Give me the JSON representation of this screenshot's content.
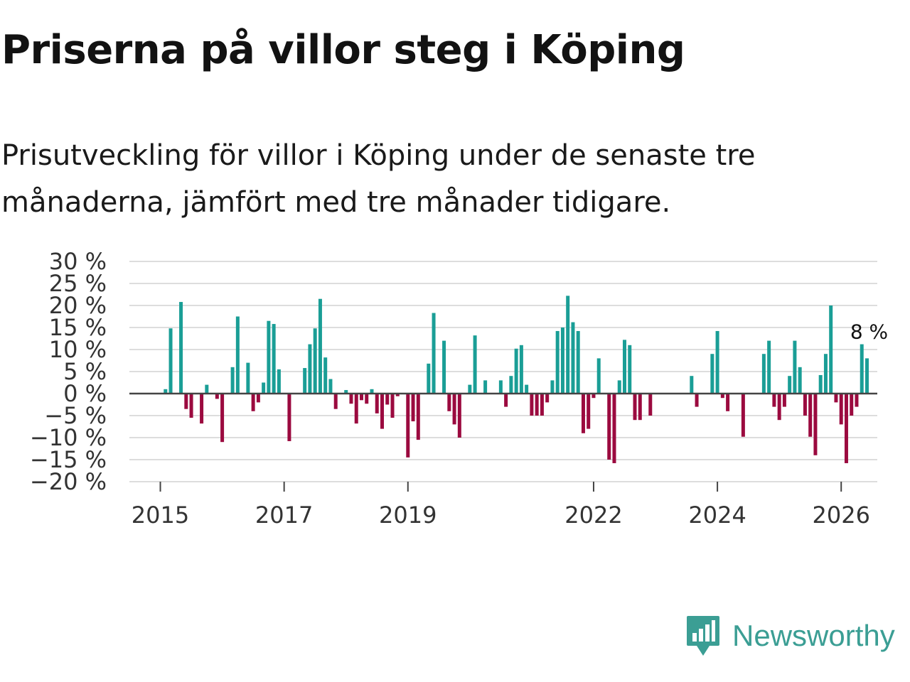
{
  "title": "Priserna på villor steg i Köping",
  "subtitle": "Prisutveckling för villor i Köping under de senaste tre månaderna, jämfört med tre månader tidigare.",
  "brand": {
    "name": "Newsworthy",
    "icon": "newsworthy-logo-icon"
  },
  "colors": {
    "positive": "#1a9e96",
    "negative": "#9b0a3f",
    "grid": "#dddddd",
    "baseline": "#444444",
    "brand": "#3b9e94"
  },
  "chart_data": {
    "type": "bar",
    "title": "Priserna på villor steg i Köping",
    "xlabel": "",
    "ylabel": "",
    "ylim": [
      -20,
      30
    ],
    "yticks": [
      30,
      25,
      20,
      15,
      10,
      5,
      0,
      -5,
      -10,
      -15,
      -20
    ],
    "ytick_labels": [
      "30 %",
      "25 %",
      "20 %",
      "15 %",
      "10 %",
      "5 %",
      "0 %",
      "−5 %",
      "−10 %",
      "−15 %",
      "−20 %"
    ],
    "xlim": [
      "2014-07",
      "2026-08"
    ],
    "xticks": [
      "2015-01",
      "2017-01",
      "2019-01",
      "2022-01",
      "2024-01",
      "2026-01"
    ],
    "xtick_labels": [
      "2015",
      "2017",
      "2019",
      "2022",
      "2024",
      "2026"
    ],
    "end_label": "8 %",
    "series": [
      {
        "name": "Prisutveckling",
        "points": [
          [
            "2015-02",
            1
          ],
          [
            "2015-03",
            14.8
          ],
          [
            "2015-05",
            20.8
          ],
          [
            "2015-06",
            -3.5
          ],
          [
            "2015-07",
            -5.5
          ],
          [
            "2015-09",
            -6.8
          ],
          [
            "2015-10",
            2
          ],
          [
            "2015-12",
            -1.2
          ],
          [
            "2016-01",
            -11
          ],
          [
            "2016-03",
            6
          ],
          [
            "2016-04",
            17.5
          ],
          [
            "2016-06",
            7
          ],
          [
            "2016-07",
            -4
          ],
          [
            "2016-08",
            -2
          ],
          [
            "2016-09",
            2.5
          ],
          [
            "2016-10",
            16.5
          ],
          [
            "2016-11",
            15.8
          ],
          [
            "2016-12",
            5.5
          ],
          [
            "2017-02",
            -10.8
          ],
          [
            "2017-05",
            5.8
          ],
          [
            "2017-06",
            11.2
          ],
          [
            "2017-07",
            14.8
          ],
          [
            "2017-08",
            21.5
          ],
          [
            "2017-09",
            8.2
          ],
          [
            "2017-10",
            3.3
          ],
          [
            "2017-11",
            -3.5
          ],
          [
            "2018-01",
            0.8
          ],
          [
            "2018-02",
            -2.3
          ],
          [
            "2018-03",
            -6.8
          ],
          [
            "2018-04",
            -1.5
          ],
          [
            "2018-05",
            -2.3
          ],
          [
            "2018-06",
            1
          ],
          [
            "2018-07",
            -4.5
          ],
          [
            "2018-08",
            -8
          ],
          [
            "2018-09",
            -2.5
          ],
          [
            "2018-10",
            -5.5
          ],
          [
            "2018-11",
            -0.6
          ],
          [
            "2019-01",
            -14.5
          ],
          [
            "2019-02",
            -6.3
          ],
          [
            "2019-03",
            -10.5
          ],
          [
            "2019-05",
            6.8
          ],
          [
            "2019-06",
            18.3
          ],
          [
            "2019-08",
            12
          ],
          [
            "2019-09",
            -4
          ],
          [
            "2019-10",
            -7
          ],
          [
            "2019-11",
            -10
          ],
          [
            "2020-01",
            2
          ],
          [
            "2020-02",
            13.2
          ],
          [
            "2020-04",
            3
          ],
          [
            "2020-07",
            3
          ],
          [
            "2020-08",
            -3
          ],
          [
            "2020-09",
            4
          ],
          [
            "2020-10",
            10.2
          ],
          [
            "2020-11",
            11
          ],
          [
            "2020-12",
            2
          ],
          [
            "2021-01",
            -5
          ],
          [
            "2021-02",
            -5
          ],
          [
            "2021-03",
            -5
          ],
          [
            "2021-04",
            -2
          ],
          [
            "2021-05",
            3
          ],
          [
            "2021-06",
            14.2
          ],
          [
            "2021-07",
            15
          ],
          [
            "2021-08",
            22.2
          ],
          [
            "2021-09",
            16.2
          ],
          [
            "2021-10",
            14.2
          ],
          [
            "2021-11",
            -9
          ],
          [
            "2021-12",
            -8
          ],
          [
            "2022-01",
            -1
          ],
          [
            "2022-02",
            8
          ],
          [
            "2022-04",
            -15
          ],
          [
            "2022-05",
            -15.8
          ],
          [
            "2022-06",
            3
          ],
          [
            "2022-07",
            12.2
          ],
          [
            "2022-08",
            11
          ],
          [
            "2022-09",
            -6
          ],
          [
            "2022-10",
            -6
          ],
          [
            "2022-12",
            -5
          ],
          [
            "2023-08",
            4
          ],
          [
            "2023-09",
            -3
          ],
          [
            "2023-12",
            9
          ],
          [
            "2024-01",
            14.2
          ],
          [
            "2024-02",
            -1
          ],
          [
            "2024-03",
            -4
          ],
          [
            "2024-06",
            -9.8
          ],
          [
            "2024-10",
            9
          ],
          [
            "2024-11",
            12
          ],
          [
            "2024-12",
            -3
          ],
          [
            "2025-01",
            -6
          ],
          [
            "2025-02",
            -3
          ],
          [
            "2025-03",
            4
          ],
          [
            "2025-04",
            12
          ],
          [
            "2025-05",
            6
          ],
          [
            "2025-06",
            -5
          ],
          [
            "2025-07",
            -9.8
          ],
          [
            "2025-08",
            -14
          ],
          [
            "2025-09",
            4.2
          ],
          [
            "2025-10",
            9
          ],
          [
            "2025-11",
            20
          ],
          [
            "2025-12",
            -2
          ],
          [
            "2026-01",
            -7
          ],
          [
            "2026-02",
            -15.8
          ],
          [
            "2026-03",
            -5
          ],
          [
            "2026-04",
            -3
          ],
          [
            "2026-05",
            11.2
          ],
          [
            "2026-06",
            8
          ]
        ]
      }
    ]
  }
}
